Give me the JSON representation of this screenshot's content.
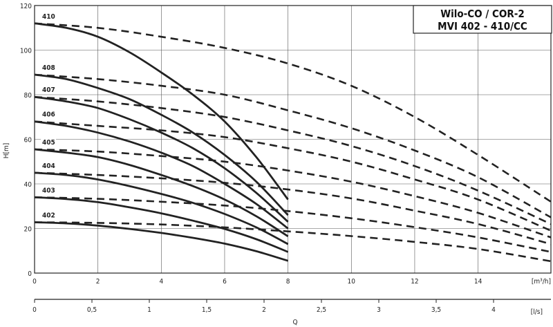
{
  "chart_data": {
    "type": "line",
    "title_lines": [
      "Wilo-CO / COR-2",
      "MVI 402 - 410/CC"
    ],
    "ylabel": "H[m]",
    "xlabel": "Q",
    "x_unit": "[m³/h]",
    "x2_unit": "[l/s]",
    "ylim": [
      0,
      120
    ],
    "xlim": [
      0,
      16.3
    ],
    "x2lim": [
      0,
      4.5
    ],
    "yticks": [
      "0",
      "20",
      "40",
      "60",
      "80",
      "100",
      "120"
    ],
    "xticks": [
      "0",
      "2",
      "4",
      "6",
      "8",
      "10",
      "12",
      "14"
    ],
    "x2ticks": [
      "0",
      "0,5",
      "1",
      "1,5",
      "2",
      "2,5",
      "3",
      "3,5",
      "4"
    ],
    "grid": true,
    "series": [
      {
        "name": "410",
        "single": {
          "x": [
            0,
            1,
            2,
            3,
            4,
            5,
            6,
            7,
            8
          ],
          "y": [
            112,
            110,
            106,
            99,
            90,
            80,
            68,
            52,
            33
          ]
        },
        "dual": {
          "x": [
            0,
            2,
            4,
            6,
            8,
            10,
            12,
            14,
            16.3
          ],
          "y": [
            112,
            110,
            106,
            101,
            94,
            84,
            70,
            53,
            32
          ]
        }
      },
      {
        "name": "408",
        "single": {
          "x": [
            0,
            1,
            2,
            3,
            4,
            5,
            6,
            7,
            8
          ],
          "y": [
            89,
            87,
            83,
            78,
            71,
            63,
            53,
            41,
            26
          ]
        },
        "dual": {
          "x": [
            0,
            2,
            4,
            6,
            8,
            10,
            12,
            14,
            16.3
          ],
          "y": [
            89,
            87,
            84,
            80,
            73,
            65,
            55,
            43,
            25
          ]
        }
      },
      {
        "name": "407",
        "single": {
          "x": [
            0,
            1,
            2,
            3,
            4,
            5,
            6,
            7,
            8
          ],
          "y": [
            79,
            77,
            74,
            69,
            63,
            56,
            47,
            36,
            23
          ]
        },
        "dual": {
          "x": [
            0,
            2,
            4,
            6,
            8,
            10,
            12,
            14,
            16.3
          ],
          "y": [
            79,
            77,
            74,
            70,
            64,
            57,
            48,
            37,
            22
          ]
        }
      },
      {
        "name": "406",
        "single": {
          "x": [
            0,
            1,
            2,
            3,
            4,
            5,
            6,
            7,
            8
          ],
          "y": [
            68,
            66,
            63,
            59,
            54,
            48,
            40,
            31,
            20
          ]
        },
        "dual": {
          "x": [
            0,
            2,
            4,
            6,
            8,
            10,
            12,
            14,
            16.3
          ],
          "y": [
            68,
            66,
            64,
            61,
            56,
            50,
            42,
            33,
            19
          ]
        }
      },
      {
        "name": "405",
        "single": {
          "x": [
            0,
            1,
            2,
            3,
            4,
            5,
            6,
            7,
            8
          ],
          "y": [
            55.5,
            54,
            52,
            48.5,
            44,
            39,
            33,
            25.5,
            16.5
          ]
        },
        "dual": {
          "x": [
            0,
            2,
            4,
            6,
            8,
            10,
            12,
            14,
            16.3
          ],
          "y": [
            55.5,
            54.5,
            52.5,
            50,
            46,
            41,
            34.5,
            27,
            16
          ]
        }
      },
      {
        "name": "404",
        "single": {
          "x": [
            0,
            1,
            2,
            3,
            4,
            5,
            6,
            7,
            8
          ],
          "y": [
            45,
            44,
            42,
            39,
            35.5,
            31.5,
            26.5,
            20.5,
            13
          ]
        },
        "dual": {
          "x": [
            0,
            2,
            4,
            6,
            8,
            10,
            12,
            14,
            16.3
          ],
          "y": [
            45,
            44,
            42.5,
            40.5,
            37.5,
            33.5,
            28,
            22,
            13
          ]
        }
      },
      {
        "name": "403",
        "single": {
          "x": [
            0,
            1,
            2,
            3,
            4,
            5,
            6,
            7,
            8
          ],
          "y": [
            34,
            33.2,
            31.8,
            29.5,
            26.8,
            23.5,
            19.8,
            15.2,
            9.5
          ]
        },
        "dual": {
          "x": [
            0,
            2,
            4,
            6,
            8,
            10,
            12,
            14,
            16.3
          ],
          "y": [
            34,
            33.3,
            32,
            30.3,
            27.8,
            24.6,
            20.6,
            16,
            9.5
          ]
        }
      },
      {
        "name": "402",
        "single": {
          "x": [
            0,
            1,
            2,
            3,
            4,
            5,
            6,
            7,
            8
          ],
          "y": [
            22.8,
            22.3,
            21.3,
            19.8,
            18,
            15.8,
            13.2,
            9.8,
            5.5
          ]
        },
        "dual": {
          "x": [
            0,
            2,
            4,
            6,
            8,
            10,
            12,
            14,
            16.3
          ],
          "y": [
            22.8,
            22.5,
            21.8,
            20.5,
            18.7,
            16.6,
            14,
            10.8,
            5.3
          ]
        }
      }
    ]
  }
}
